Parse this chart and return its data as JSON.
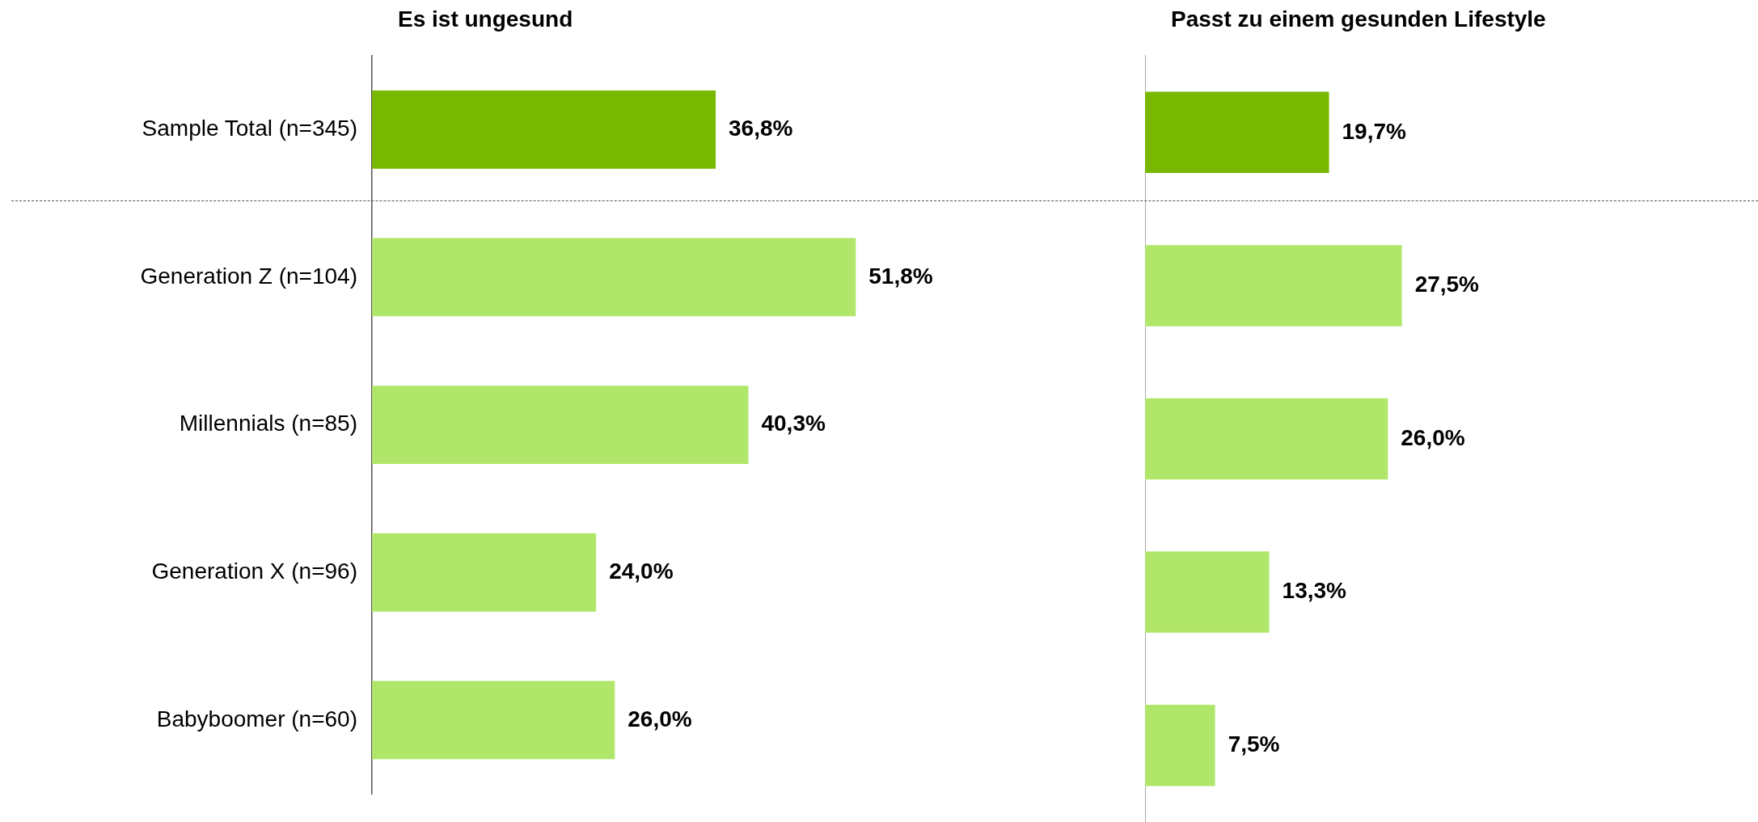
{
  "chart_data": [
    {
      "type": "bar",
      "orientation": "horizontal",
      "title": "Es ist ungesund",
      "categories": [
        "Sample Total (n=345)",
        "Generation Z (n=104)",
        "Millennials (n=85)",
        "Generation X (n=96)",
        "Babyboomer (n=60)"
      ],
      "values": [
        36.8,
        51.8,
        40.3,
        24.0,
        26.0
      ],
      "value_labels": [
        "36,8%",
        "51,8%",
        "40,3%",
        "24,0%",
        "26,0%"
      ],
      "colors": [
        "#78b800",
        "#b0e66a",
        "#b0e66a",
        "#b0e66a",
        "#b0e66a"
      ],
      "tick_labels": "y"
    },
    {
      "type": "bar",
      "orientation": "horizontal",
      "title": "Passt zu einem gesunden Lifestyle",
      "categories": [
        null,
        null,
        null,
        null,
        null
      ],
      "values": [
        19.7,
        27.5,
        26.0,
        13.3,
        7.5
      ],
      "value_labels": [
        "19,7%",
        "27,5%",
        "26,0%",
        "13,3%",
        "7,5%"
      ],
      "colors": [
        "#78b800",
        "#b0e66a",
        "#b0e66a",
        "#b0e66a",
        "#b0e66a"
      ],
      "tick_labels": false
    }
  ]
}
